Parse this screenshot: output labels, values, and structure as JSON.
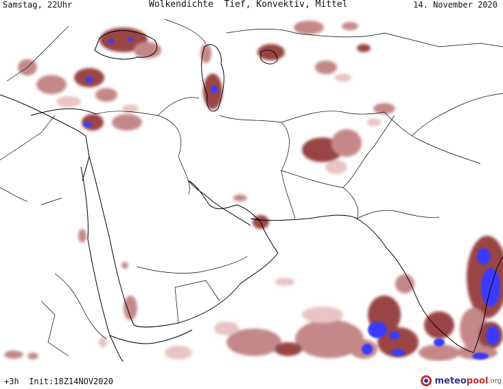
{
  "header": {
    "left": "Samstag, 22Uhr",
    "center": "Wolkendichte  Tief, Konvektiv, Mittel",
    "right": "14. November 2020"
  },
  "footer": {
    "run_info": "+3h  Init:18Z14NOV2020",
    "logo_meteo": "meteo",
    "logo_pool": "pool",
    "logo_org": ".org"
  },
  "colors": {
    "cloud_low": "#e8c4c4",
    "cloud_mid": "#c48888",
    "cloud_high": "#9a4444",
    "cloud_dense": "#7a2a2a",
    "convective": "#3a3aff",
    "borders": "#000000",
    "logo_blue": "#2b3a8c",
    "logo_red": "#c62a2a"
  },
  "icons": {
    "logo": "meteopool-globe-icon"
  }
}
